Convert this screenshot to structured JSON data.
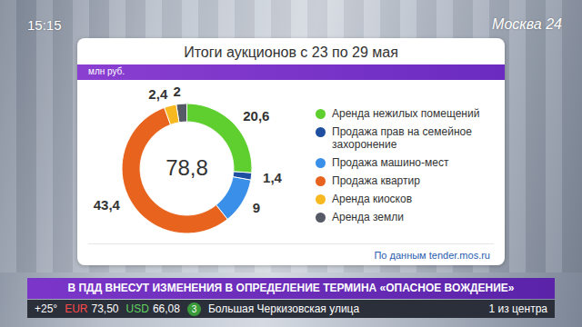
{
  "chart_data": {
    "type": "donut",
    "title": "Итоги аукционов с 23 по 29 мая",
    "subtitle": "млн руб.",
    "caption": "По данным tender.mos.ru",
    "categories": [
      "Аренда нежилых помещений",
      "Продажа прав на семейное захоронение",
      "Продажа машино-мест",
      "Продажа квартир",
      "Аренда киосков",
      "Аренда земли"
    ],
    "values": [
      20.6,
      1.4,
      9,
      43.4,
      2.4,
      2
    ],
    "value_labels": [
      "20,6",
      "1,4",
      "9",
      "43,4",
      "2,4",
      "2"
    ],
    "colors": [
      "#5fcf30",
      "#1f4fa0",
      "#3a8fe8",
      "#e8641e",
      "#f8b820",
      "#555a66"
    ],
    "data_labels": true,
    "legend": "right",
    "total": {
      "value": 78.8,
      "label": "78,8"
    }
  },
  "screen": {
    "clock": "15:15",
    "channel": "Москва 24",
    "headline": "В ПДД ВНЕСУТ ИЗМЕНЕНИЯ В ОПРЕДЕЛЕНИЕ ТЕРМИНА «ОПАСНОЕ ВОЖДЕНИЕ»",
    "weather": "+25°",
    "rates": [
      {
        "name": "EUR",
        "value": "73,50"
      },
      {
        "name": "USD",
        "value": "66,08"
      }
    ],
    "metro_line": "3",
    "station": "Большая Черкизовская улица",
    "note": "1 из центра"
  }
}
